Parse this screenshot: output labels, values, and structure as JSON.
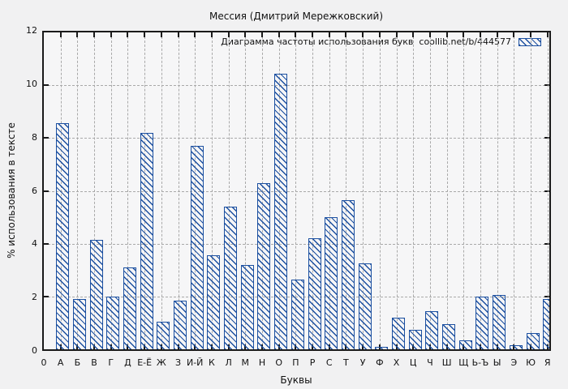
{
  "chart_data": {
    "type": "bar",
    "title": "Мессия (Дмитрий Мережковский)",
    "legend": "Диаграмма частоты использования букв  coollib.net/b/444577",
    "xlabel": "Буквы",
    "ylabel": "% использования в тексте",
    "origin_tick_label": "0",
    "ylim": [
      0,
      12
    ],
    "ytick_labels": [
      "0",
      "2",
      "4",
      "6",
      "8",
      "10",
      "12"
    ],
    "x_axis_max_units": 30.11,
    "categories": [
      "А",
      "Б",
      "В",
      "Г",
      "Д",
      "Е-Ё",
      "Ж",
      "З",
      "И-Й",
      "К",
      "Л",
      "М",
      "Н",
      "О",
      "П",
      "Р",
      "С",
      "Т",
      "У",
      "Ф",
      "Х",
      "Ц",
      "Ч",
      "Ш",
      "Щ",
      "Ь-Ъ",
      "Ы",
      "Э",
      "Ю",
      "Я"
    ],
    "values": [
      8.55,
      1.9,
      4.15,
      2.0,
      3.1,
      8.2,
      1.05,
      1.85,
      7.7,
      3.55,
      5.4,
      3.2,
      6.3,
      10.45,
      2.65,
      4.2,
      5.0,
      5.65,
      3.25,
      0.1,
      1.2,
      0.75,
      1.45,
      0.95,
      0.35,
      2.0,
      2.05,
      0.15,
      0.6,
      1.9
    ],
    "grid": "dashed",
    "legend_position": "top-right-inside",
    "colors": {
      "bar": "#1b4fa0",
      "grid": "#a9a9a9",
      "axis": "#1a1a1a",
      "plot_background": "#f6f6f7",
      "page_background": "#f1f1f2",
      "text": "#000000"
    }
  }
}
